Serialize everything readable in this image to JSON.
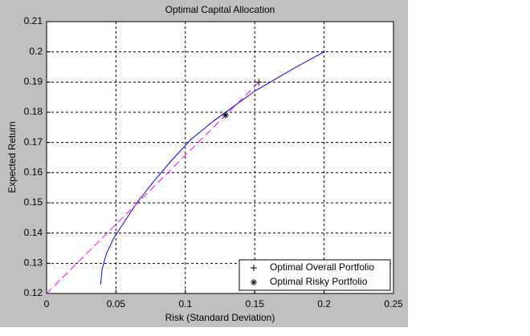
{
  "chart_data": {
    "type": "line",
    "title": "Optimal Capital Allocation",
    "xlabel": "Risk (Standard Deviation)",
    "ylabel": "Expected  Return",
    "xlim": [
      0,
      0.25
    ],
    "ylim": [
      0.12,
      0.21
    ],
    "xticks": [
      0,
      0.05,
      0.1,
      0.15,
      0.2,
      0.25
    ],
    "yticks": [
      0.12,
      0.13,
      0.14,
      0.15,
      0.16,
      0.17,
      0.18,
      0.19,
      0.2,
      0.21
    ],
    "grid": true,
    "legend": "lower right",
    "series": [
      {
        "color": "#0000ff",
        "x": [
          0.039,
          0.04,
          0.043,
          0.048,
          0.055,
          0.065,
          0.077,
          0.09,
          0.104,
          0.12,
          0.135,
          0.15,
          0.165,
          0.18,
          0.2
        ],
        "values": [
          0.123,
          0.128,
          0.133,
          0.138,
          0.143,
          0.15,
          0.157,
          0.164,
          0.171,
          0.177,
          0.182,
          0.187,
          0.191,
          0.195,
          0.2
        ]
      },
      {
        "color": "#ff00ff",
        "dashed": true,
        "x": [
          0,
          0.153
        ],
        "values": [
          0.12,
          0.19
        ]
      },
      {
        "name": "Optimal Overall Portfolio",
        "marker": "+",
        "color": "#000000",
        "x": [
          0.153
        ],
        "values": [
          0.19
        ]
      },
      {
        "name": "Optimal Risky Portfolio",
        "marker": "*",
        "color": "#000000",
        "x": [
          0.129
        ],
        "values": [
          0.179
        ]
      }
    ]
  }
}
